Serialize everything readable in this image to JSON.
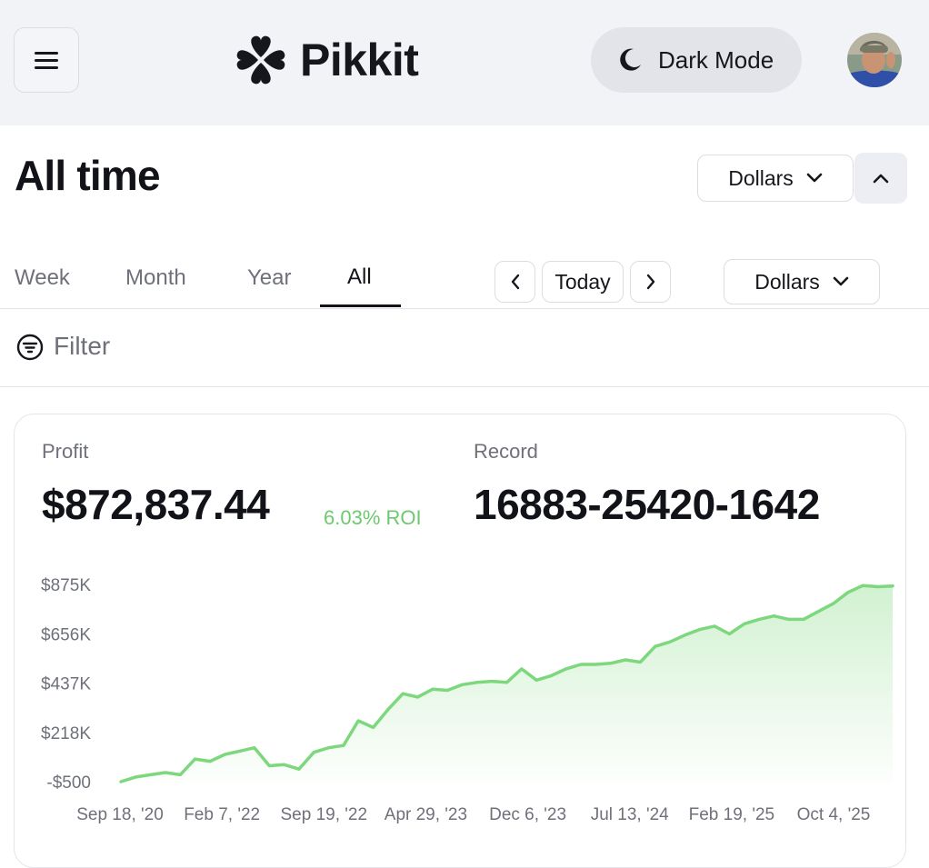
{
  "header": {
    "brand_name": "Pikkit",
    "dark_mode_label": "Dark Mode"
  },
  "page": {
    "title": "All time",
    "currency_select": "Dollars"
  },
  "tabs": [
    {
      "label": "Week"
    },
    {
      "label": "Month"
    },
    {
      "label": "Year"
    },
    {
      "label": "All",
      "active": true
    }
  ],
  "date_nav": {
    "today_label": "Today",
    "currency_select": "Dollars"
  },
  "filter": {
    "label": "Filter"
  },
  "stats": {
    "profit_label": "Profit",
    "profit_value": "$872,837.44",
    "roi": "6.03% ROI",
    "record_label": "Record",
    "record_value": "16883-25420-1642"
  },
  "colors": {
    "accent_green": "#6cc96f",
    "line_green": "#7dd87d"
  },
  "chart_data": {
    "type": "area",
    "y_ticks": [
      "$875K",
      "$656K",
      "$437K",
      "$218K",
      "-$500"
    ],
    "y_tick_values": [
      875000,
      656000,
      437000,
      218000,
      -500
    ],
    "x_ticks": [
      "Sep 18, '20",
      "Feb 7, '22",
      "Sep 19, '22",
      "Apr 29, '23",
      "Dec 6, '23",
      "Jul 13, '24",
      "Feb 19, '25",
      "Oct 4, '25"
    ],
    "ylim": [
      -500,
      875000
    ],
    "grid": false,
    "values": [
      -500,
      20000,
      30000,
      40000,
      30000,
      100000,
      90000,
      120000,
      135000,
      150000,
      70000,
      75000,
      55000,
      130000,
      150000,
      160000,
      270000,
      240000,
      320000,
      390000,
      375000,
      410000,
      405000,
      430000,
      440000,
      445000,
      440000,
      500000,
      450000,
      470000,
      500000,
      520000,
      520000,
      525000,
      540000,
      530000,
      600000,
      620000,
      650000,
      675000,
      690000,
      655000,
      700000,
      720000,
      735000,
      720000,
      720000,
      755000,
      790000,
      840000,
      870000,
      865000,
      868000
    ]
  }
}
